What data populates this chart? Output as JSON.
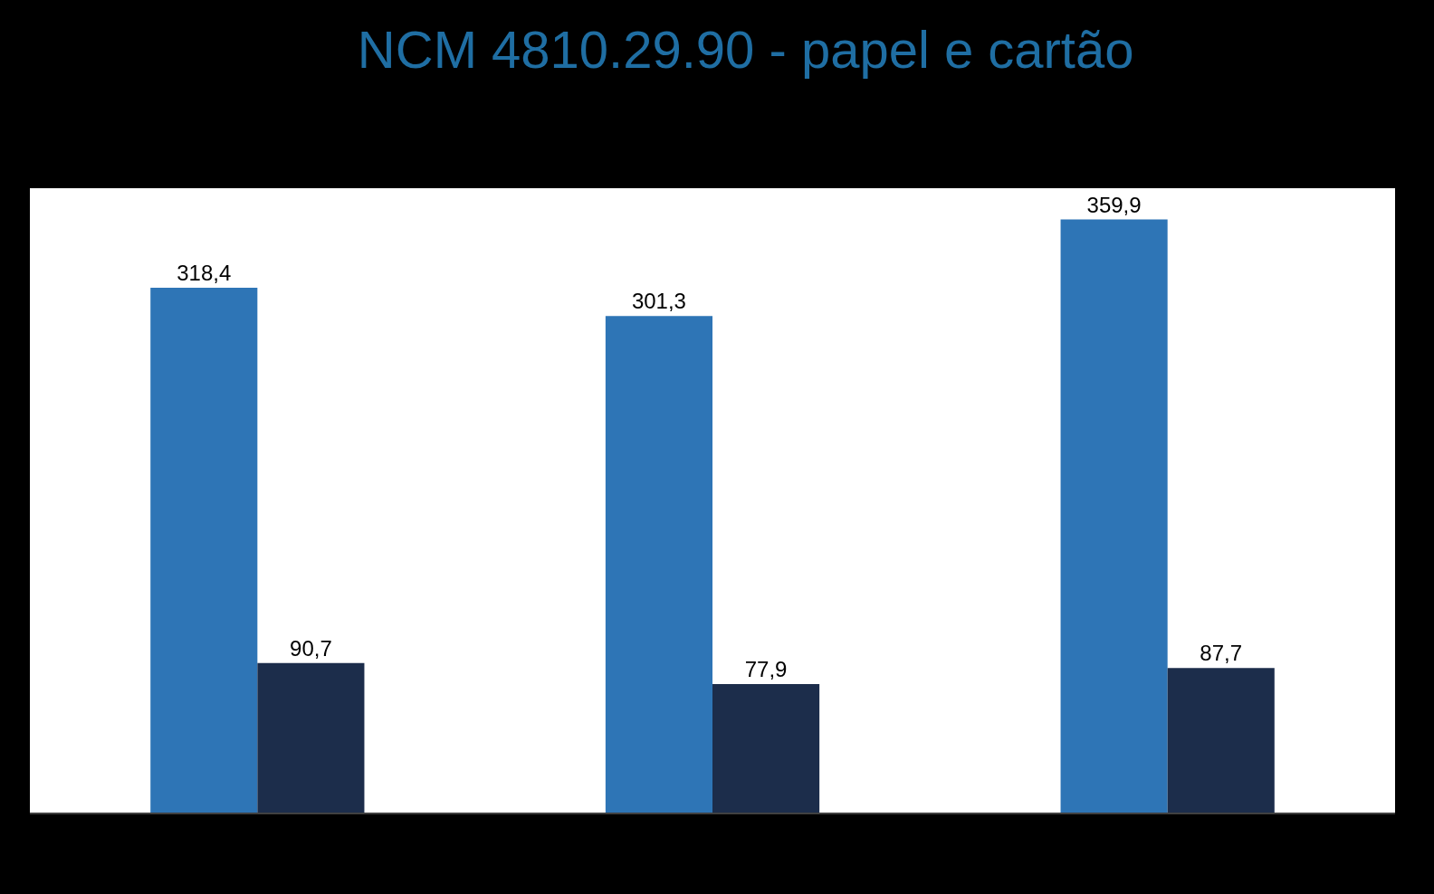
{
  "chart_data": {
    "type": "bar",
    "title": "NCM 4810.29.90 - papel e cartão",
    "categories": [
      null,
      null,
      null
    ],
    "series": [
      {
        "color": "#2e75b6",
        "values": [
          318.4,
          301.3,
          359.9
        ],
        "value_labels": [
          "318,4",
          "301,3",
          "359,9"
        ]
      },
      {
        "color": "#1c2d4b",
        "values": [
          90.7,
          77.9,
          87.7
        ],
        "value_labels": [
          "90,7",
          "77,9",
          "87,7"
        ]
      }
    ]
  }
}
